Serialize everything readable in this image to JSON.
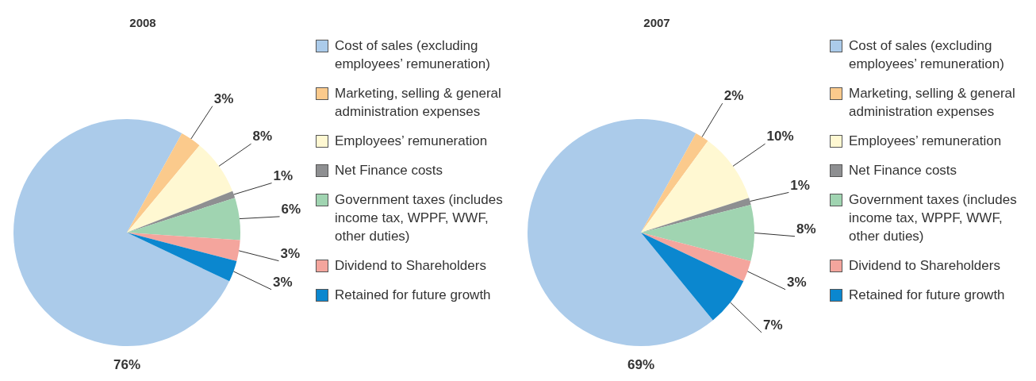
{
  "chart_data": [
    {
      "type": "pie",
      "title": "2008",
      "legend": "right",
      "categories": [
        "Cost of sales (excluding employees’ remuneration)",
        "Marketing, selling & general administration expenses",
        "Employees’ remuneration",
        "Net Finance costs",
        "Government taxes (includes income tax, WPPF, WWF, other duties)",
        "Dividend to Shareholders",
        "Retained for future growth"
      ],
      "values": [
        76,
        3,
        8,
        1,
        6,
        3,
        3
      ],
      "value_labels": [
        "76%",
        "3%",
        "8%",
        "1%",
        "6%",
        "3%",
        "3%"
      ],
      "colors": [
        "#abcbea",
        "#fbca8c",
        "#fff8d2",
        "#8e8f91",
        "#a0d4b1",
        "#f4a59d",
        "#0b87cf"
      ]
    },
    {
      "type": "pie",
      "title": "2007",
      "legend": "right",
      "categories": [
        "Cost of sales (excluding employees’ remuneration)",
        "Marketing, selling & general administration expenses",
        "Employees’ remuneration",
        "Net Finance costs",
        "Government taxes (includes income tax, WPPF, WWF, other duties)",
        "Dividend to Shareholders",
        "Retained for future growth"
      ],
      "values": [
        69,
        2,
        10,
        1,
        8,
        3,
        7
      ],
      "value_labels": [
        "69%",
        "2%",
        "10%",
        "1%",
        "8%",
        "3%",
        "7%"
      ],
      "colors": [
        "#abcbea",
        "#fbca8c",
        "#fff8d2",
        "#8e8f91",
        "#a0d4b1",
        "#f4a59d",
        "#0b87cf"
      ]
    }
  ]
}
